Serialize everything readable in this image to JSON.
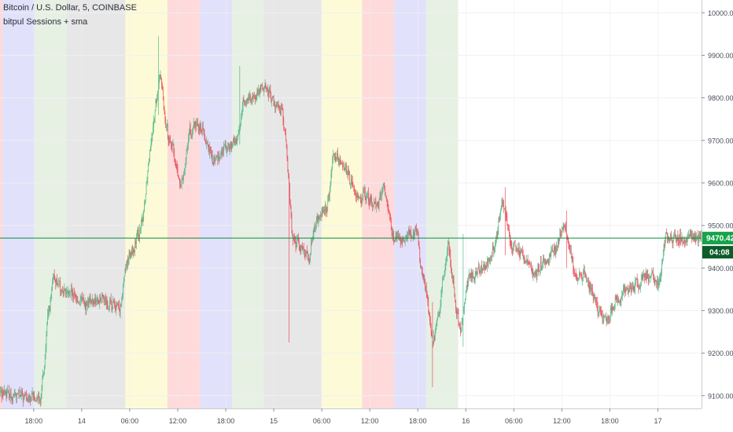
{
  "chart_data": {
    "type": "candlestick",
    "title": "Bitcoin / U.S. Dollar, 5, COINBASE",
    "indicator": "bitpul Sessions + sma",
    "ylim": [
      9070,
      10030
    ],
    "y_ticks": [
      9100,
      9200,
      9300,
      9400,
      9500,
      9600,
      9700,
      9800,
      9900,
      10000
    ],
    "y_tick_labels": [
      "9100.00",
      "9200.00",
      "9300.00",
      "9400.00",
      "9500.00",
      "9600.00",
      "9700.00",
      "9800.00",
      "9900.00",
      "10000.00"
    ],
    "x_ticks": [
      {
        "label": "18:00",
        "bar": 50
      },
      {
        "label": "14",
        "bar": 122
      },
      {
        "label": "06:00",
        "bar": 194
      },
      {
        "label": "12:00",
        "bar": 266
      },
      {
        "label": "18:00",
        "bar": 338
      },
      {
        "label": "15",
        "bar": 410
      },
      {
        "label": "06:00",
        "bar": 482
      },
      {
        "label": "12:00",
        "bar": 554
      },
      {
        "label": "18:00",
        "bar": 626
      },
      {
        "label": "16",
        "bar": 698
      },
      {
        "label": "06:00",
        "bar": 770
      },
      {
        "label": "12:00",
        "bar": 842
      },
      {
        "label": "18:00",
        "bar": 914
      },
      {
        "label": "17",
        "bar": 986
      }
    ],
    "current_price": 9470.42,
    "current_price_label": "9470.42",
    "countdown_label": "04:08",
    "bars_total": 1052,
    "sessions": [
      {
        "start": -25,
        "end": 4,
        "color": "#ffd6d6"
      },
      {
        "start": 4,
        "end": 52,
        "color": "#dedefb"
      },
      {
        "start": 52,
        "end": 100,
        "color": "#e3eee0"
      },
      {
        "start": 100,
        "end": 188,
        "color": "#e4e4e4"
      },
      {
        "start": 188,
        "end": 251,
        "color": "#fdfbd3"
      },
      {
        "start": 251,
        "end": 300,
        "color": "#ffd6d6"
      },
      {
        "start": 300,
        "end": 348,
        "color": "#dedefb"
      },
      {
        "start": 348,
        "end": 395,
        "color": "#e3eee0"
      },
      {
        "start": 395,
        "end": 482,
        "color": "#e4e4e4"
      },
      {
        "start": 482,
        "end": 543,
        "color": "#fdfbd3"
      },
      {
        "start": 543,
        "end": 591,
        "color": "#ffd6d6"
      },
      {
        "start": 591,
        "end": 639,
        "color": "#dedefb"
      },
      {
        "start": 639,
        "end": 687,
        "color": "#e3eee0"
      }
    ],
    "price_path": [
      [
        -25,
        9180
      ],
      [
        -8,
        9110
      ],
      [
        20,
        9100
      ],
      [
        45,
        9090
      ],
      [
        60,
        9100
      ],
      [
        64,
        9150
      ],
      [
        70,
        9280
      ],
      [
        80,
        9380
      ],
      [
        90,
        9350
      ],
      [
        110,
        9330
      ],
      [
        130,
        9310
      ],
      [
        150,
        9330
      ],
      [
        170,
        9310
      ],
      [
        178,
        9300
      ],
      [
        186,
        9400
      ],
      [
        200,
        9450
      ],
      [
        212,
        9500
      ],
      [
        224,
        9700
      ],
      [
        236,
        9820
      ],
      [
        240,
        9870
      ],
      [
        246,
        9740
      ],
      [
        258,
        9680
      ],
      [
        270,
        9580
      ],
      [
        282,
        9720
      ],
      [
        300,
        9740
      ],
      [
        318,
        9650
      ],
      [
        340,
        9690
      ],
      [
        356,
        9700
      ],
      [
        364,
        9790
      ],
      [
        380,
        9800
      ],
      [
        396,
        9830
      ],
      [
        412,
        9780
      ],
      [
        420,
        9780
      ],
      [
        428,
        9690
      ],
      [
        432,
        9600
      ],
      [
        436,
        9480
      ],
      [
        450,
        9450
      ],
      [
        462,
        9430
      ],
      [
        474,
        9520
      ],
      [
        490,
        9540
      ],
      [
        498,
        9650
      ],
      [
        510,
        9660
      ],
      [
        530,
        9580
      ],
      [
        550,
        9560
      ],
      [
        566,
        9550
      ],
      [
        574,
        9600
      ],
      [
        586,
        9480
      ],
      [
        600,
        9460
      ],
      [
        612,
        9480
      ],
      [
        624,
        9480
      ],
      [
        632,
        9390
      ],
      [
        640,
        9320
      ],
      [
        648,
        9230
      ],
      [
        656,
        9280
      ],
      [
        664,
        9400
      ],
      [
        672,
        9460
      ],
      [
        682,
        9300
      ],
      [
        690,
        9250
      ],
      [
        700,
        9380
      ],
      [
        720,
        9400
      ],
      [
        740,
        9440
      ],
      [
        752,
        9560
      ],
      [
        766,
        9460
      ],
      [
        780,
        9440
      ],
      [
        800,
        9380
      ],
      [
        816,
        9420
      ],
      [
        830,
        9440
      ],
      [
        846,
        9500
      ],
      [
        860,
        9380
      ],
      [
        876,
        9380
      ],
      [
        896,
        9300
      ],
      [
        908,
        9270
      ],
      [
        920,
        9320
      ],
      [
        940,
        9350
      ],
      [
        960,
        9370
      ],
      [
        976,
        9390
      ],
      [
        986,
        9350
      ],
      [
        996,
        9470
      ]
    ],
    "spikes": [
      {
        "bar": 237,
        "high": 9945,
        "low": 9760
      },
      {
        "bar": 359,
        "high": 9875,
        "low": 9690
      },
      {
        "bar": 433,
        "high": 9550,
        "low": 9225
      },
      {
        "bar": 648,
        "high": 9320,
        "low": 9120
      },
      {
        "bar": 694,
        "high": 9480,
        "low": 9215
      },
      {
        "bar": 757,
        "high": 9590,
        "low": 9430
      },
      {
        "bar": 849,
        "high": 9535,
        "low": 9400
      }
    ],
    "colors": {
      "up": "#53b987",
      "down": "#eb4d5c",
      "price_line": "#0e8a3e",
      "price_box": "#16a34a",
      "countdown_box": "#0d5c2a",
      "grid": "#eef0f3",
      "axis_text": "#4a4e5a"
    }
  }
}
